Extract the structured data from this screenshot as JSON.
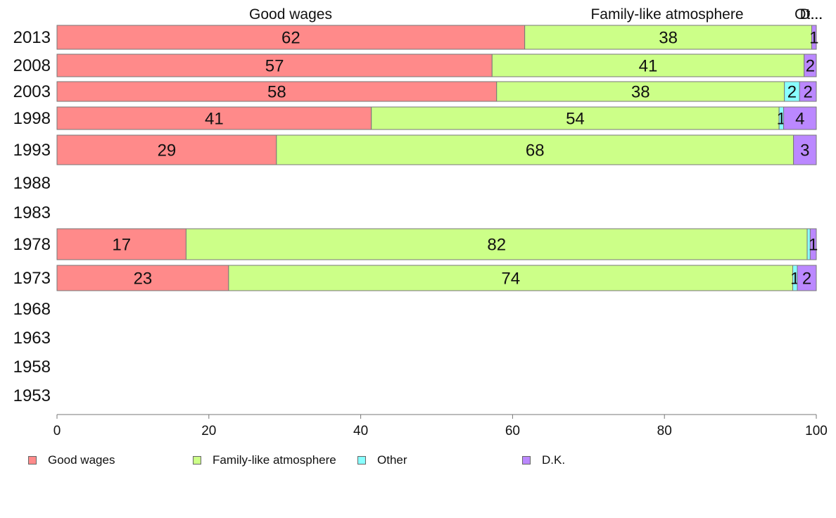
{
  "chart_data": {
    "type": "bar",
    "orientation": "horizontal",
    "stacked": true,
    "categories": [
      "2013",
      "2008",
      "2003",
      "1998",
      "1993",
      "1988",
      "1983",
      "1978",
      "1973",
      "1968",
      "1963",
      "1958",
      "1953"
    ],
    "series": [
      {
        "name": "Good wages",
        "color": "#ff8a8a",
        "values": [
          61.6,
          57.3,
          57.9,
          41.4,
          28.9,
          null,
          null,
          17.0,
          22.6,
          null,
          null,
          null,
          null
        ],
        "labels": [
          "62",
          "57",
          "58",
          "41",
          "29",
          "",
          "",
          "17",
          "23",
          "",
          "",
          "",
          ""
        ]
      },
      {
        "name": "Family-like atmosphere",
        "color": "#ccff88",
        "values": [
          37.8,
          41.1,
          37.9,
          53.7,
          68.1,
          null,
          null,
          81.8,
          74.3,
          null,
          null,
          null,
          null
        ],
        "labels": [
          "38",
          "41",
          "38",
          "54",
          "68",
          "",
          "",
          "82",
          "74",
          "",
          "",
          "",
          ""
        ]
      },
      {
        "name": "Other",
        "color": "#88ffff",
        "values": [
          0.0,
          0.0,
          2.0,
          0.6,
          0.0,
          null,
          null,
          0.4,
          0.6,
          null,
          null,
          null,
          null
        ],
        "labels": [
          "",
          "",
          "2",
          "1",
          "",
          "",
          "",
          "",
          "1",
          "",
          "",
          "",
          ""
        ]
      },
      {
        "name": "D.K.",
        "color": "#bb88ff",
        "values": [
          0.6,
          1.6,
          2.2,
          4.3,
          3.0,
          null,
          null,
          0.8,
          2.5,
          null,
          null,
          null,
          null
        ],
        "labels": [
          "1",
          "2",
          "2",
          "4",
          "3",
          "",
          "",
          "1",
          "2",
          "",
          "",
          "",
          ""
        ]
      }
    ],
    "top_labels": [
      "Good wages",
      "Family-like atmosphere",
      "Other",
      "D.K."
    ],
    "top_labels_display": [
      "Good wages",
      "Family-like atmosphere",
      "Ot...",
      "D..."
    ],
    "xlim": [
      0,
      100
    ],
    "xticks": [
      0,
      20,
      40,
      60,
      80,
      100
    ],
    "xlabel": "",
    "ylabel": "",
    "title": "",
    "grid": false,
    "legend_position": "bottom"
  }
}
